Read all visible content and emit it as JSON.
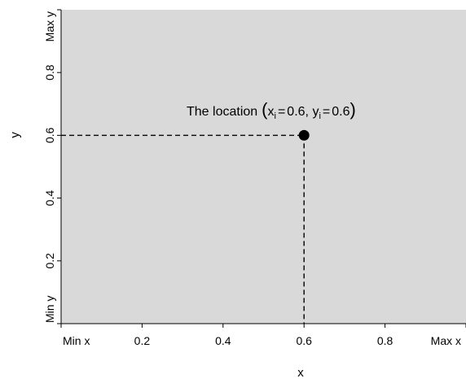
{
  "chart_data": {
    "type": "scatter",
    "xlabel": "x",
    "ylabel": "y",
    "xlim": [
      0,
      1
    ],
    "ylim": [
      0,
      1
    ],
    "x_ticks": [
      {
        "value": 0,
        "label": "Min x"
      },
      {
        "value": 0.2,
        "label": "0.2"
      },
      {
        "value": 0.4,
        "label": "0.4"
      },
      {
        "value": 0.6,
        "label": "0.6"
      },
      {
        "value": 0.8,
        "label": "0.8"
      },
      {
        "value": 1,
        "label": "Max x"
      }
    ],
    "y_ticks": [
      {
        "value": 0,
        "label": "Min y"
      },
      {
        "value": 0.2,
        "label": "0.2"
      },
      {
        "value": 0.4,
        "label": "0.4"
      },
      {
        "value": 0.6,
        "label": "0.6"
      },
      {
        "value": 0.8,
        "label": "0.8"
      },
      {
        "value": 1,
        "label": "Max y"
      }
    ],
    "points": [
      {
        "x": 0.6,
        "y": 0.6
      }
    ],
    "annotation": {
      "prefix": "The location",
      "x_var": "x",
      "y_var": "y",
      "index": "i",
      "x_value": "0.6",
      "y_value": "0.6"
    },
    "guide_lines": "dashed",
    "grid": false,
    "background_color": "#d9d9d9",
    "point_color": "#000000"
  }
}
